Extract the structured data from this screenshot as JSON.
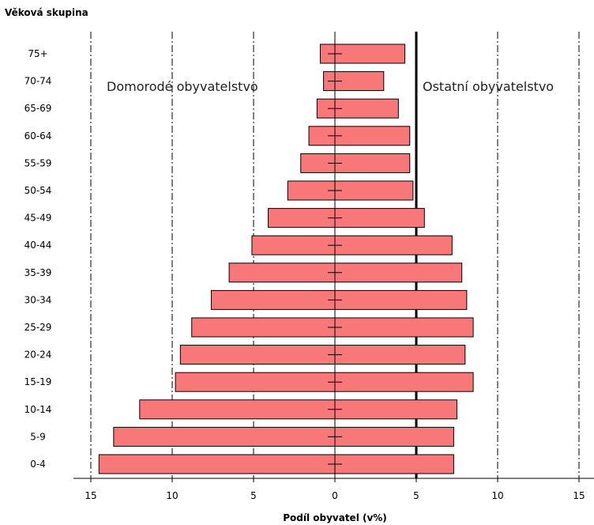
{
  "chart_data": {
    "type": "bar",
    "orientation": "horizontal",
    "ylabel": "Věková skupina",
    "xlabel": "Podíl obyvatel (v%)",
    "categories": [
      "0-4",
      "5-9",
      "10-14",
      "15-19",
      "20-24",
      "25-29",
      "30-34",
      "35-39",
      "40-44",
      "45-49",
      "50-54",
      "55-59",
      "60-64",
      "65-69",
      "70-74",
      "75+"
    ],
    "series": [
      {
        "name": "Domorodé obyvatelstvo",
        "side": "left",
        "values": [
          14.5,
          13.6,
          12.0,
          9.8,
          9.5,
          8.8,
          7.6,
          6.5,
          5.1,
          4.1,
          2.9,
          2.1,
          1.6,
          1.1,
          0.7,
          0.9
        ]
      },
      {
        "name": "Ostatní obyvatelstvo",
        "side": "right",
        "values": [
          7.3,
          7.3,
          7.5,
          8.5,
          8.0,
          8.5,
          8.1,
          7.8,
          7.2,
          5.5,
          4.8,
          4.6,
          4.6,
          3.9,
          3.0,
          4.3
        ]
      }
    ],
    "xticks": [
      "15",
      "10",
      "5",
      "0",
      "5",
      "10",
      "15"
    ],
    "xlim": [
      -15,
      15
    ],
    "vertical_reference_lines": [
      -15,
      -10,
      -5,
      5,
      10,
      15
    ],
    "bold_reference_line": 5,
    "bar_color": "#f8787a",
    "bar_edge_color": "#000000",
    "grid": false
  }
}
